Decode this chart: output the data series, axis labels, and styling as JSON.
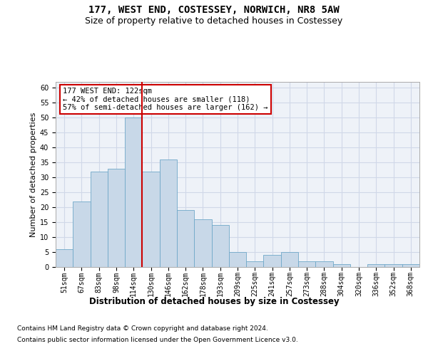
{
  "title1": "177, WEST END, COSTESSEY, NORWICH, NR8 5AW",
  "title2": "Size of property relative to detached houses in Costessey",
  "xlabel": "Distribution of detached houses by size in Costessey",
  "ylabel": "Number of detached properties",
  "categories": [
    "51sqm",
    "67sqm",
    "83sqm",
    "98sqm",
    "114sqm",
    "130sqm",
    "146sqm",
    "162sqm",
    "178sqm",
    "193sqm",
    "209sqm",
    "225sqm",
    "241sqm",
    "257sqm",
    "273sqm",
    "288sqm",
    "304sqm",
    "320sqm",
    "336sqm",
    "352sqm",
    "368sqm"
  ],
  "values": [
    6,
    22,
    32,
    33,
    50,
    32,
    36,
    19,
    16,
    14,
    5,
    2,
    4,
    5,
    2,
    2,
    1,
    0,
    1,
    1,
    1
  ],
  "bar_color": "#c8d8e8",
  "bar_edge_color": "#6fa8c8",
  "grid_color": "#d0d8e8",
  "background_color": "#eef2f8",
  "vline_x_index": 4,
  "vline_color": "#cc0000",
  "annotation_text": "177 WEST END: 122sqm\n← 42% of detached houses are smaller (118)\n57% of semi-detached houses are larger (162) →",
  "annotation_box_color": "#ffffff",
  "annotation_box_edge": "#cc0000",
  "ylim": [
    0,
    62
  ],
  "yticks": [
    0,
    5,
    10,
    15,
    20,
    25,
    30,
    35,
    40,
    45,
    50,
    55,
    60
  ],
  "footnote1": "Contains HM Land Registry data © Crown copyright and database right 2024.",
  "footnote2": "Contains public sector information licensed under the Open Government Licence v3.0.",
  "title1_fontsize": 10,
  "title2_fontsize": 9,
  "xlabel_fontsize": 8.5,
  "ylabel_fontsize": 8,
  "tick_fontsize": 7,
  "annot_fontsize": 7.5,
  "footnote_fontsize": 6.5
}
